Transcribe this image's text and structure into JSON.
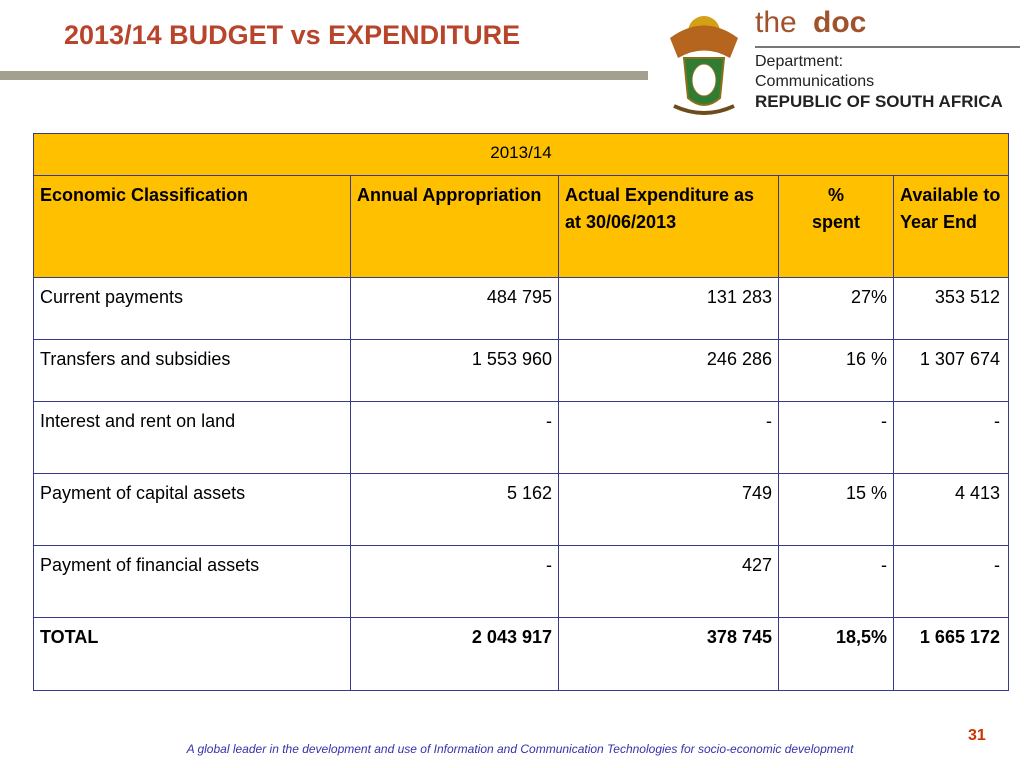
{
  "header": {
    "title": "2013/14 BUDGET vs EXPENDITURE"
  },
  "logo": {
    "the": "the",
    "doc": "doc",
    "line1": "Department:",
    "line2": "Communications",
    "line3": "REPUBLIC OF SOUTH AFRICA"
  },
  "table": {
    "period": "2013/14",
    "columns": [
      "Economic Classification",
      "Annual Appropriation",
      "Actual Expenditure as at 30/06/2013",
      "% spent",
      "Available to Year End"
    ],
    "rows": [
      [
        "Current payments",
        "484 795",
        "131 283",
        "27%",
        "353 512"
      ],
      [
        "Transfers and subsidies",
        "1 553 960",
        "246 286",
        "16 %",
        "1 307 674"
      ],
      [
        "Interest and rent on land",
        "-",
        "-",
        "-",
        "-"
      ],
      [
        "Payment of capital assets",
        "5 162",
        "749",
        "15 %",
        "4 413"
      ],
      [
        "Payment  of financial assets",
        "-",
        "427",
        "-",
        "-"
      ],
      [
        "TOTAL",
        "2 043 917",
        "378 745",
        "18,5%",
        "1 665 172"
      ]
    ]
  },
  "footer": {
    "page": "31",
    "tagline": "A global leader in the development and use of Information and Communication Technologies for socio-economic development"
  }
}
